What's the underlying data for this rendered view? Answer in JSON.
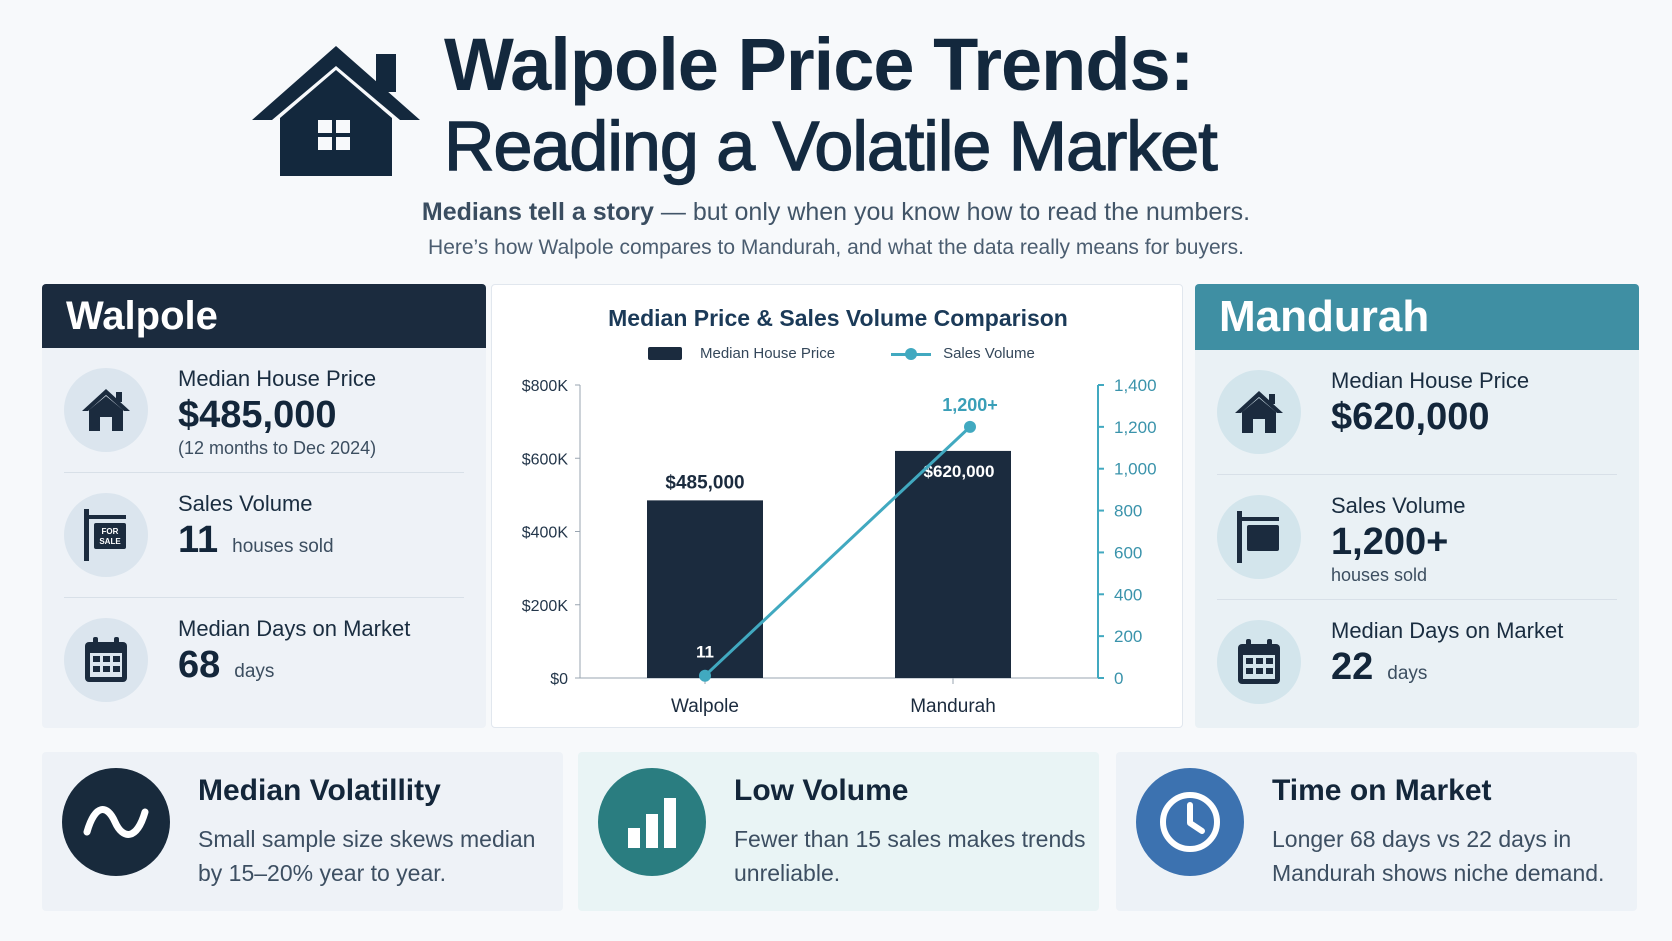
{
  "header": {
    "title_line1": "Walpole Price Trends:",
    "title_line2": "Reading a Volatile Market",
    "subtitle_bold": "Medians tell a story",
    "subtitle_rest": " — but only when you know how to read the numbers.",
    "subtitle2": "Here’s how Walpole compares to Mandurah, and what the data really means for buyers."
  },
  "walpole": {
    "name": "Walpole",
    "price_label": "Median House Price",
    "price_value": "$485,000",
    "price_note": "(12 months to Dec 2024)",
    "volume_label": "Sales Volume",
    "volume_value": "11",
    "volume_unit": "houses sold",
    "days_label": "Median Days on Market",
    "days_value": "68",
    "days_unit": "days",
    "sign_text_1": "FOR",
    "sign_text_2": "SALE"
  },
  "mandurah": {
    "name": "Mandurah",
    "price_label": "Median House Price",
    "price_value": "$620,000",
    "volume_label": "Sales Volume",
    "volume_value": "1,200+",
    "volume_unit": "houses sold",
    "days_label": "Median Days on Market",
    "days_value": "22",
    "days_unit": "days"
  },
  "chart_data": {
    "type": "bar",
    "title": "Median Price & Sales Volume Comparison",
    "categories": [
      "Walpole",
      "Mandurah"
    ],
    "series": [
      {
        "name": "Median House Price",
        "type": "bar",
        "axis": "left",
        "values": [
          485000,
          620000
        ],
        "labels": [
          "$485,000",
          "$620,000"
        ],
        "color": "#1b2b3e"
      },
      {
        "name": "Sales Volume",
        "type": "line",
        "axis": "right",
        "values": [
          11,
          1200
        ],
        "labels": [
          "11",
          "1,200+"
        ],
        "color": "#41a9c0"
      }
    ],
    "ylim_left": [
      0,
      800000
    ],
    "yticks_left": [
      "$0",
      "$200K",
      "$400K",
      "$600K",
      "$800K"
    ],
    "ylim_right": [
      0,
      1400
    ],
    "yticks_right": [
      "0",
      "200",
      "400",
      "600",
      "800",
      "1,000",
      "1,200",
      "1,400"
    ],
    "legend": "top"
  },
  "tips": [
    {
      "title": "Median Volatillity",
      "body": "Small sample size skews median by 15–20% year to year.",
      "icon": "wave-icon"
    },
    {
      "title": "Low Volume",
      "body": "Fewer than 15 sales makes trends unreliable.",
      "icon": "bar-chart-icon"
    },
    {
      "title": "Time on Market",
      "body": "Longer 68 days vs 22 days in Mandurah shows niche demand.",
      "icon": "clock-icon"
    }
  ],
  "colors": {
    "navy": "#1b2b3e",
    "teal": "#3f8fa3",
    "line": "#41a9c0",
    "blue": "#3c72b0",
    "green": "#2a7d80"
  }
}
